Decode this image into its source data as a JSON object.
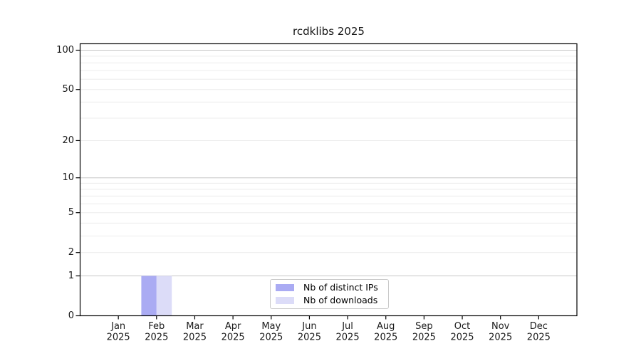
{
  "chart_data": {
    "type": "bar",
    "title": "rcdklibs 2025",
    "categories": [
      "Jan",
      "Feb",
      "Mar",
      "Apr",
      "May",
      "Jun",
      "Jul",
      "Aug",
      "Sep",
      "Oct",
      "Nov",
      "Dec"
    ],
    "category_year": "2025",
    "series": [
      {
        "name": "Nb of distinct IPs",
        "color": "#aaabf3",
        "values": [
          0,
          1,
          0,
          0,
          0,
          0,
          0,
          0,
          0,
          0,
          0,
          0
        ]
      },
      {
        "name": "Nb of downloads",
        "color": "#dcdcf8",
        "values": [
          0,
          1,
          0,
          0,
          0,
          0,
          0,
          0,
          0,
          0,
          0,
          0
        ]
      }
    ],
    "xlabel": "",
    "ylabel": "",
    "yscale": "log10(1+y)",
    "ylim": [
      0,
      112
    ],
    "y_tick_values": [
      0,
      1,
      2,
      5,
      10,
      20,
      50,
      100
    ],
    "y_major_gridlines": [
      1,
      10,
      100
    ],
    "y_minor_gridlines": [
      2,
      3,
      4,
      5,
      6,
      7,
      8,
      9,
      20,
      30,
      40,
      50,
      60,
      70,
      80,
      90
    ],
    "grid": "horizontal",
    "legend_position": "lower center"
  },
  "colors": {
    "background": "#ffffff",
    "axis": "#000000",
    "text": "#1a1a1a",
    "major_grid": "#c6c6c6",
    "minor_grid": "#ececec",
    "legend_border": "#c9c9c9"
  }
}
